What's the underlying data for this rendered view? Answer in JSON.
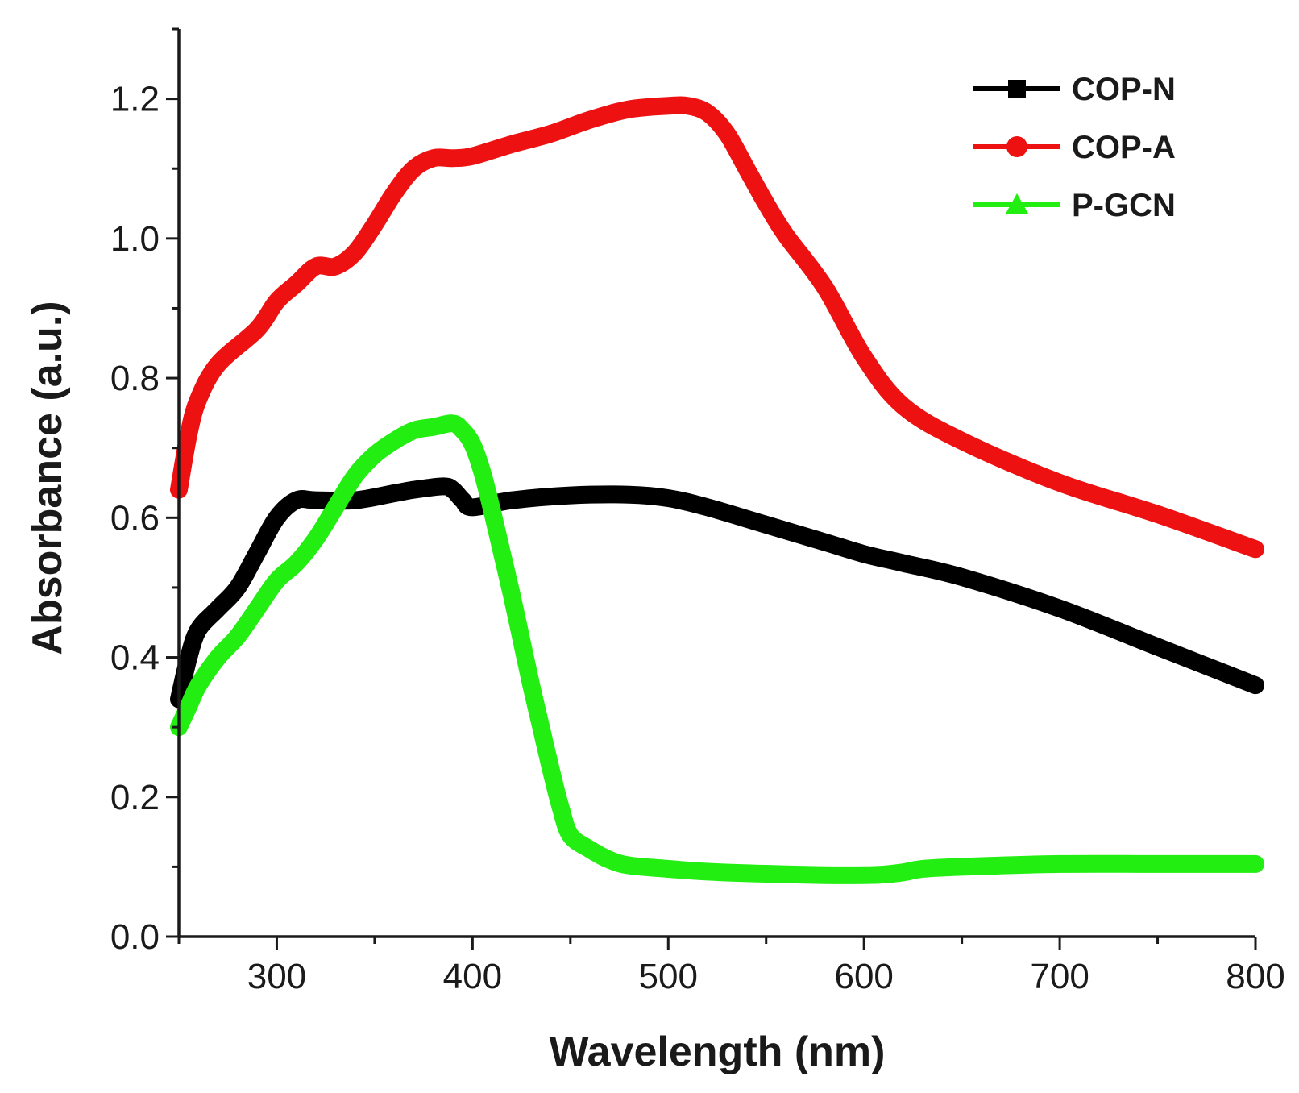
{
  "chart_data": {
    "type": "line",
    "title": "",
    "xlabel": "Wavelength (nm)",
    "ylabel": "Absorbance (a.u.)",
    "xlim": [
      250,
      800
    ],
    "ylim": [
      0.0,
      1.3
    ],
    "xticks": [
      300,
      400,
      500,
      600,
      700,
      800
    ],
    "xtick_labels": [
      "300",
      "400",
      "500",
      "600",
      "700",
      "800"
    ],
    "yticks": [
      0.0,
      0.2,
      0.4,
      0.6,
      0.8,
      1.0,
      1.2
    ],
    "ytick_labels": [
      "0.0",
      "0.2",
      "0.4",
      "0.6",
      "0.8",
      "1.0",
      "1.2"
    ],
    "grid": false,
    "legend_position": "top-right",
    "series": [
      {
        "name": "COP-N",
        "color": "#000000",
        "marker": "square",
        "x": [
          250,
          255,
          260,
          270,
          280,
          290,
          300,
          310,
          320,
          340,
          360,
          370,
          385,
          390,
          395,
          400,
          420,
          450,
          480,
          500,
          520,
          550,
          580,
          600,
          620,
          650,
          700,
          750,
          800
        ],
        "y": [
          0.34,
          0.4,
          0.44,
          0.47,
          0.5,
          0.55,
          0.6,
          0.625,
          0.625,
          0.625,
          0.635,
          0.64,
          0.645,
          0.64,
          0.625,
          0.615,
          0.625,
          0.632,
          0.633,
          0.628,
          0.615,
          0.59,
          0.565,
          0.548,
          0.535,
          0.515,
          0.47,
          0.415,
          0.36
        ]
      },
      {
        "name": "COP-A",
        "color": "#ee1111",
        "marker": "circle",
        "x": [
          250,
          255,
          260,
          270,
          290,
          300,
          310,
          320,
          330,
          340,
          350,
          360,
          370,
          380,
          390,
          400,
          420,
          440,
          460,
          480,
          500,
          510,
          520,
          530,
          540,
          550,
          560,
          580,
          600,
          620,
          650,
          700,
          750,
          800
        ],
        "y": [
          0.64,
          0.72,
          0.77,
          0.82,
          0.87,
          0.91,
          0.935,
          0.96,
          0.96,
          0.98,
          1.02,
          1.065,
          1.1,
          1.115,
          1.115,
          1.118,
          1.135,
          1.15,
          1.17,
          1.185,
          1.19,
          1.19,
          1.18,
          1.15,
          1.1,
          1.05,
          1.005,
          0.93,
          0.83,
          0.76,
          0.71,
          0.65,
          0.605,
          0.555
        ]
      },
      {
        "name": "P-GCN",
        "color": "#22ee11",
        "marker": "triangle",
        "x": [
          250,
          255,
          260,
          270,
          280,
          290,
          300,
          310,
          320,
          330,
          340,
          350,
          360,
          370,
          380,
          390,
          395,
          400,
          405,
          410,
          415,
          420,
          425,
          430,
          435,
          440,
          445,
          450,
          460,
          470,
          480,
          500,
          520,
          550,
          580,
          600,
          610,
          620,
          630,
          650,
          700,
          750,
          800
        ],
        "y": [
          0.3,
          0.33,
          0.36,
          0.4,
          0.43,
          0.47,
          0.51,
          0.535,
          0.57,
          0.615,
          0.66,
          0.69,
          0.71,
          0.725,
          0.73,
          0.735,
          0.725,
          0.705,
          0.665,
          0.61,
          0.55,
          0.49,
          0.425,
          0.36,
          0.3,
          0.24,
          0.185,
          0.145,
          0.125,
          0.11,
          0.102,
          0.097,
          0.093,
          0.09,
          0.088,
          0.088,
          0.089,
          0.092,
          0.097,
          0.1,
          0.104,
          0.104,
          0.104
        ]
      }
    ]
  }
}
